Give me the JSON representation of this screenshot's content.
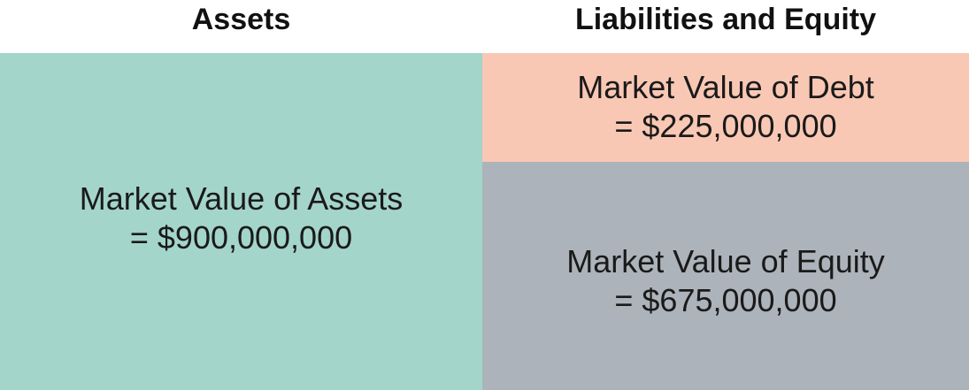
{
  "headers": {
    "assets": "Assets",
    "liabilities_equity": "Liabilities and Equity"
  },
  "blocks": {
    "assets": {
      "line1": "Market Value of Assets",
      "line2": "= $900,000,000",
      "value": 900000000,
      "color": "#a4d5ca"
    },
    "debt": {
      "line1": "Market Value of Debt",
      "line2": "= $225,000,000",
      "value": 225000000,
      "color": "#f9c8b4"
    },
    "equity": {
      "line1": "Market Value of Equity",
      "line2": "= $675,000,000",
      "value": 675000000,
      "color": "#adb3ba"
    }
  }
}
